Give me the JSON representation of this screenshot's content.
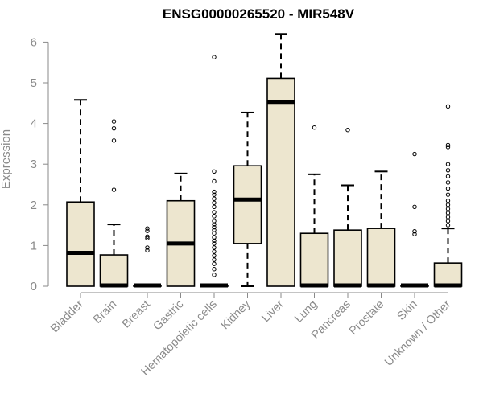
{
  "chart_data": {
    "type": "boxplot",
    "title": "ENSG00000265520 - MIR548V",
    "xlabel": "",
    "ylabel": "Expression",
    "ylim": [
      0,
      6.2
    ],
    "yticks": [
      0,
      1,
      2,
      3,
      4,
      5,
      6
    ],
    "categories": [
      "Bladder",
      "Brain",
      "Breast",
      "Gastric",
      "Hematopoietic cells",
      "Kidney",
      "Liver",
      "Lung",
      "Pancreas",
      "Prostate",
      "Skin",
      "Unknown / Other"
    ],
    "boxes": [
      {
        "q1": 0,
        "median": 0.82,
        "q3": 2.07,
        "whisker_low": 0,
        "whisker_high": 4.58,
        "outliers": []
      },
      {
        "q1": 0,
        "median": 0.02,
        "q3": 0.77,
        "whisker_low": 0,
        "whisker_high": 1.52,
        "outliers": [
          2.37,
          3.58,
          3.88,
          4.05
        ]
      },
      {
        "q1": 0,
        "median": 0.02,
        "q3": 0.02,
        "whisker_low": 0,
        "whisker_high": 0.02,
        "outliers": [
          0.88,
          0.95,
          1.18,
          1.22,
          1.36,
          1.42
        ]
      },
      {
        "q1": 0,
        "median": 1.05,
        "q3": 2.1,
        "whisker_low": 0,
        "whisker_high": 2.77,
        "outliers": []
      },
      {
        "q1": 0,
        "median": 0.02,
        "q3": 0.02,
        "whisker_low": 0,
        "whisker_high": 0.02,
        "outliers": [
          0.28,
          0.42,
          0.55,
          0.65,
          0.75,
          0.85,
          0.95,
          1.05,
          1.12,
          1.2,
          1.3,
          1.38,
          1.45,
          1.52,
          1.6,
          1.72,
          1.82,
          1.95,
          2.05,
          2.15,
          2.25,
          2.32,
          2.58,
          2.82,
          5.63
        ]
      },
      {
        "q1": 1.05,
        "median": 2.13,
        "q3": 2.96,
        "whisker_low": 0,
        "whisker_high": 4.27,
        "outliers": []
      },
      {
        "q1": 0,
        "median": 4.53,
        "q3": 5.11,
        "whisker_low": 0,
        "whisker_high": 6.2,
        "outliers": []
      },
      {
        "q1": 0,
        "median": 0.02,
        "q3": 1.3,
        "whisker_low": 0,
        "whisker_high": 2.75,
        "outliers": [
          3.9
        ]
      },
      {
        "q1": 0,
        "median": 0.02,
        "q3": 1.38,
        "whisker_low": 0,
        "whisker_high": 2.48,
        "outliers": [
          3.84
        ]
      },
      {
        "q1": 0,
        "median": 0.02,
        "q3": 1.42,
        "whisker_low": 0,
        "whisker_high": 2.82,
        "outliers": []
      },
      {
        "q1": 0,
        "median": 0.02,
        "q3": 0.02,
        "whisker_low": 0,
        "whisker_high": 0.02,
        "outliers": [
          1.28,
          1.35,
          1.95,
          3.25
        ]
      },
      {
        "q1": 0,
        "median": 0.02,
        "q3": 0.57,
        "whisker_low": 0,
        "whisker_high": 1.42,
        "outliers": [
          1.5,
          1.6,
          1.7,
          1.8,
          1.9,
          2.0,
          2.1,
          2.25,
          2.4,
          2.55,
          2.7,
          2.85,
          3.0,
          3.42,
          3.47,
          4.42
        ]
      }
    ]
  }
}
